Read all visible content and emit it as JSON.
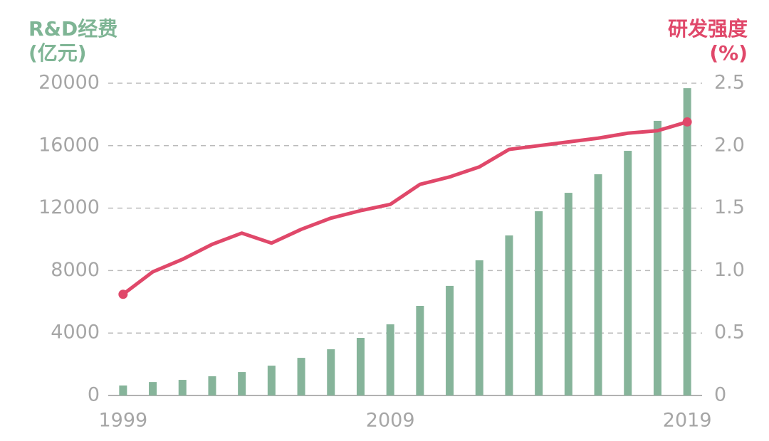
{
  "chart_data": {
    "type": "bar-line",
    "ylabel": "R&D经费",
    "yunit": "(亿元)",
    "y2label": "研发强度",
    "y2unit": "(%)",
    "categories": [
      "1999",
      null,
      null,
      null,
      null,
      null,
      null,
      null,
      null,
      "2009",
      null,
      null,
      null,
      null,
      null,
      null,
      null,
      null,
      null,
      "2019"
    ],
    "series": [
      {
        "name": "R&D经费",
        "type": "bar",
        "color": "#86b49a",
        "values": [
          640,
          860,
          1000,
          1230,
          1500,
          1910,
          2410,
          2960,
          3690,
          4560,
          5740,
          7020,
          8660,
          10250,
          11800,
          12980,
          14170,
          15670,
          17590,
          19680
        ]
      },
      {
        "name": "研发强度",
        "type": "line",
        "axis": "y2",
        "color": "#e0486a",
        "values": [
          0.81,
          0.99,
          1.09,
          1.21,
          1.3,
          1.22,
          1.33,
          1.42,
          1.48,
          1.53,
          1.69,
          1.75,
          1.83,
          1.97,
          2.0,
          2.03,
          2.06,
          2.1,
          2.12,
          2.19
        ]
      }
    ],
    "ylim": [
      0,
      20000
    ],
    "yticks": [
      0,
      4000,
      8000,
      12000,
      16000,
      20000
    ],
    "y2lim": [
      0,
      2.5
    ],
    "y2ticks": [
      0,
      0.5,
      {
        "value": 1,
        "label": "1.0"
      },
      1.5,
      {
        "value": 2,
        "label": "2.0"
      },
      2.5
    ],
    "grid": true
  }
}
